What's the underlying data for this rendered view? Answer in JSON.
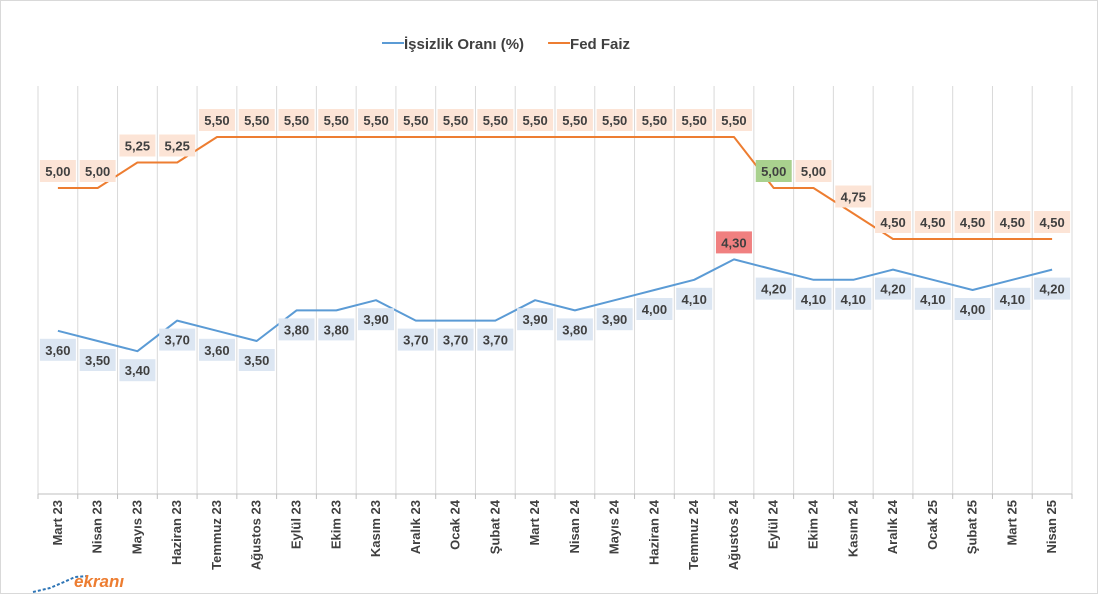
{
  "chart_data": {
    "type": "line",
    "categories": [
      "Mart 23",
      "Nisan 23",
      "Mayıs 23",
      "Haziran 23",
      "Temmuz 23",
      "Ağustos 23",
      "Eylül 23",
      "Ekim 23",
      "Kasım 23",
      "Aralık 23",
      "Ocak 24",
      "Şubat 24",
      "Mart 24",
      "Nisan 24",
      "Mayıs 24",
      "Haziran 24",
      "Temmuz 24",
      "Ağustos 24",
      "Eylül 24",
      "Ekim 24",
      "Kasım 24",
      "Aralık 24",
      "Ocak 25",
      "Şubat 25",
      "Mart 25",
      "Nisan 25"
    ],
    "series": [
      {
        "name": "İşsizlik Oranı (%)",
        "color": "#5b9bd5",
        "values": [
          3.6,
          3.5,
          3.4,
          3.7,
          3.6,
          3.5,
          3.8,
          3.8,
          3.9,
          3.7,
          3.7,
          3.7,
          3.9,
          3.8,
          3.9,
          4.0,
          4.1,
          4.3,
          4.2,
          4.1,
          4.1,
          4.2,
          4.1,
          4.0,
          4.1,
          4.2
        ],
        "labels": [
          "3,60",
          "3,50",
          "3,40",
          "3,70",
          "3,60",
          "3,50",
          "3,80",
          "3,80",
          "3,90",
          "3,70",
          "3,70",
          "3,70",
          "3,90",
          "3,80",
          "3,90",
          "4,00",
          "4,10",
          "4,30",
          "4,20",
          "4,10",
          "4,10",
          "4,20",
          "4,10",
          "4,00",
          "4,10",
          "4,20"
        ],
        "label_position": "below",
        "label_bg": "#dce6f2",
        "highlight": {
          "index": 17,
          "position": "above",
          "bg": "#f08080"
        }
      },
      {
        "name": "Fed Faiz",
        "color": "#ed7d31",
        "values": [
          5.0,
          5.0,
          5.25,
          5.25,
          5.5,
          5.5,
          5.5,
          5.5,
          5.5,
          5.5,
          5.5,
          5.5,
          5.5,
          5.5,
          5.5,
          5.5,
          5.5,
          5.5,
          5.0,
          5.0,
          4.75,
          4.5,
          4.5,
          4.5,
          4.5,
          4.5
        ],
        "labels": [
          "5,00",
          "5,00",
          "5,25",
          "5,25",
          "5,50",
          "5,50",
          "5,50",
          "5,50",
          "5,50",
          "5,50",
          "5,50",
          "5,50",
          "5,50",
          "5,50",
          "5,50",
          "5,50",
          "5,50",
          "5,50",
          "5,00",
          "5,00",
          "4,75",
          "4,50",
          "4,50",
          "4,50",
          "4,50",
          "4,50"
        ],
        "label_position": "above",
        "label_bg": "#fce4d6",
        "highlight": {
          "index": 18,
          "position": "above",
          "bg": "#a9d18e"
        }
      }
    ],
    "legend_position": "top",
    "grid": "vertical",
    "ylim": [
      2.0,
      6.0
    ],
    "title": "",
    "xlabel": "",
    "ylabel": ""
  },
  "logo": {
    "text": "ekranı",
    "color": "#ed7d31"
  }
}
